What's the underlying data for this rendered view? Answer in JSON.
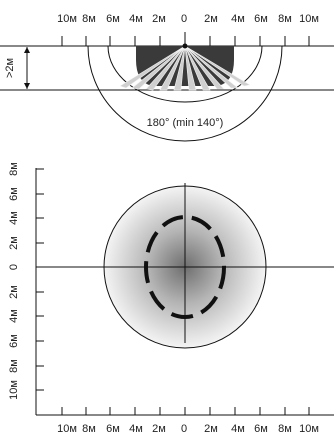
{
  "side_view": {
    "x_labels": [
      "10м",
      "8м",
      "6м",
      "4м",
      "2м",
      "0",
      "2м",
      "4м",
      "6м",
      "8м",
      "10м"
    ],
    "height_label": ">2м",
    "angle_label": "180° (min 140°)"
  },
  "top_view": {
    "x_labels": [
      "10м",
      "8м",
      "6м",
      "4м",
      "2м",
      "0",
      "2м",
      "4м",
      "6м",
      "8м",
      "10м"
    ],
    "y_labels": [
      "8м",
      "6м",
      "4м",
      "2м",
      "0",
      "2м",
      "4м",
      "6м",
      "8м",
      "10м"
    ]
  },
  "colors": {
    "line": "#111111",
    "sensor_dark": "#3a3a3a",
    "beam_light": "#c8c8c8"
  }
}
